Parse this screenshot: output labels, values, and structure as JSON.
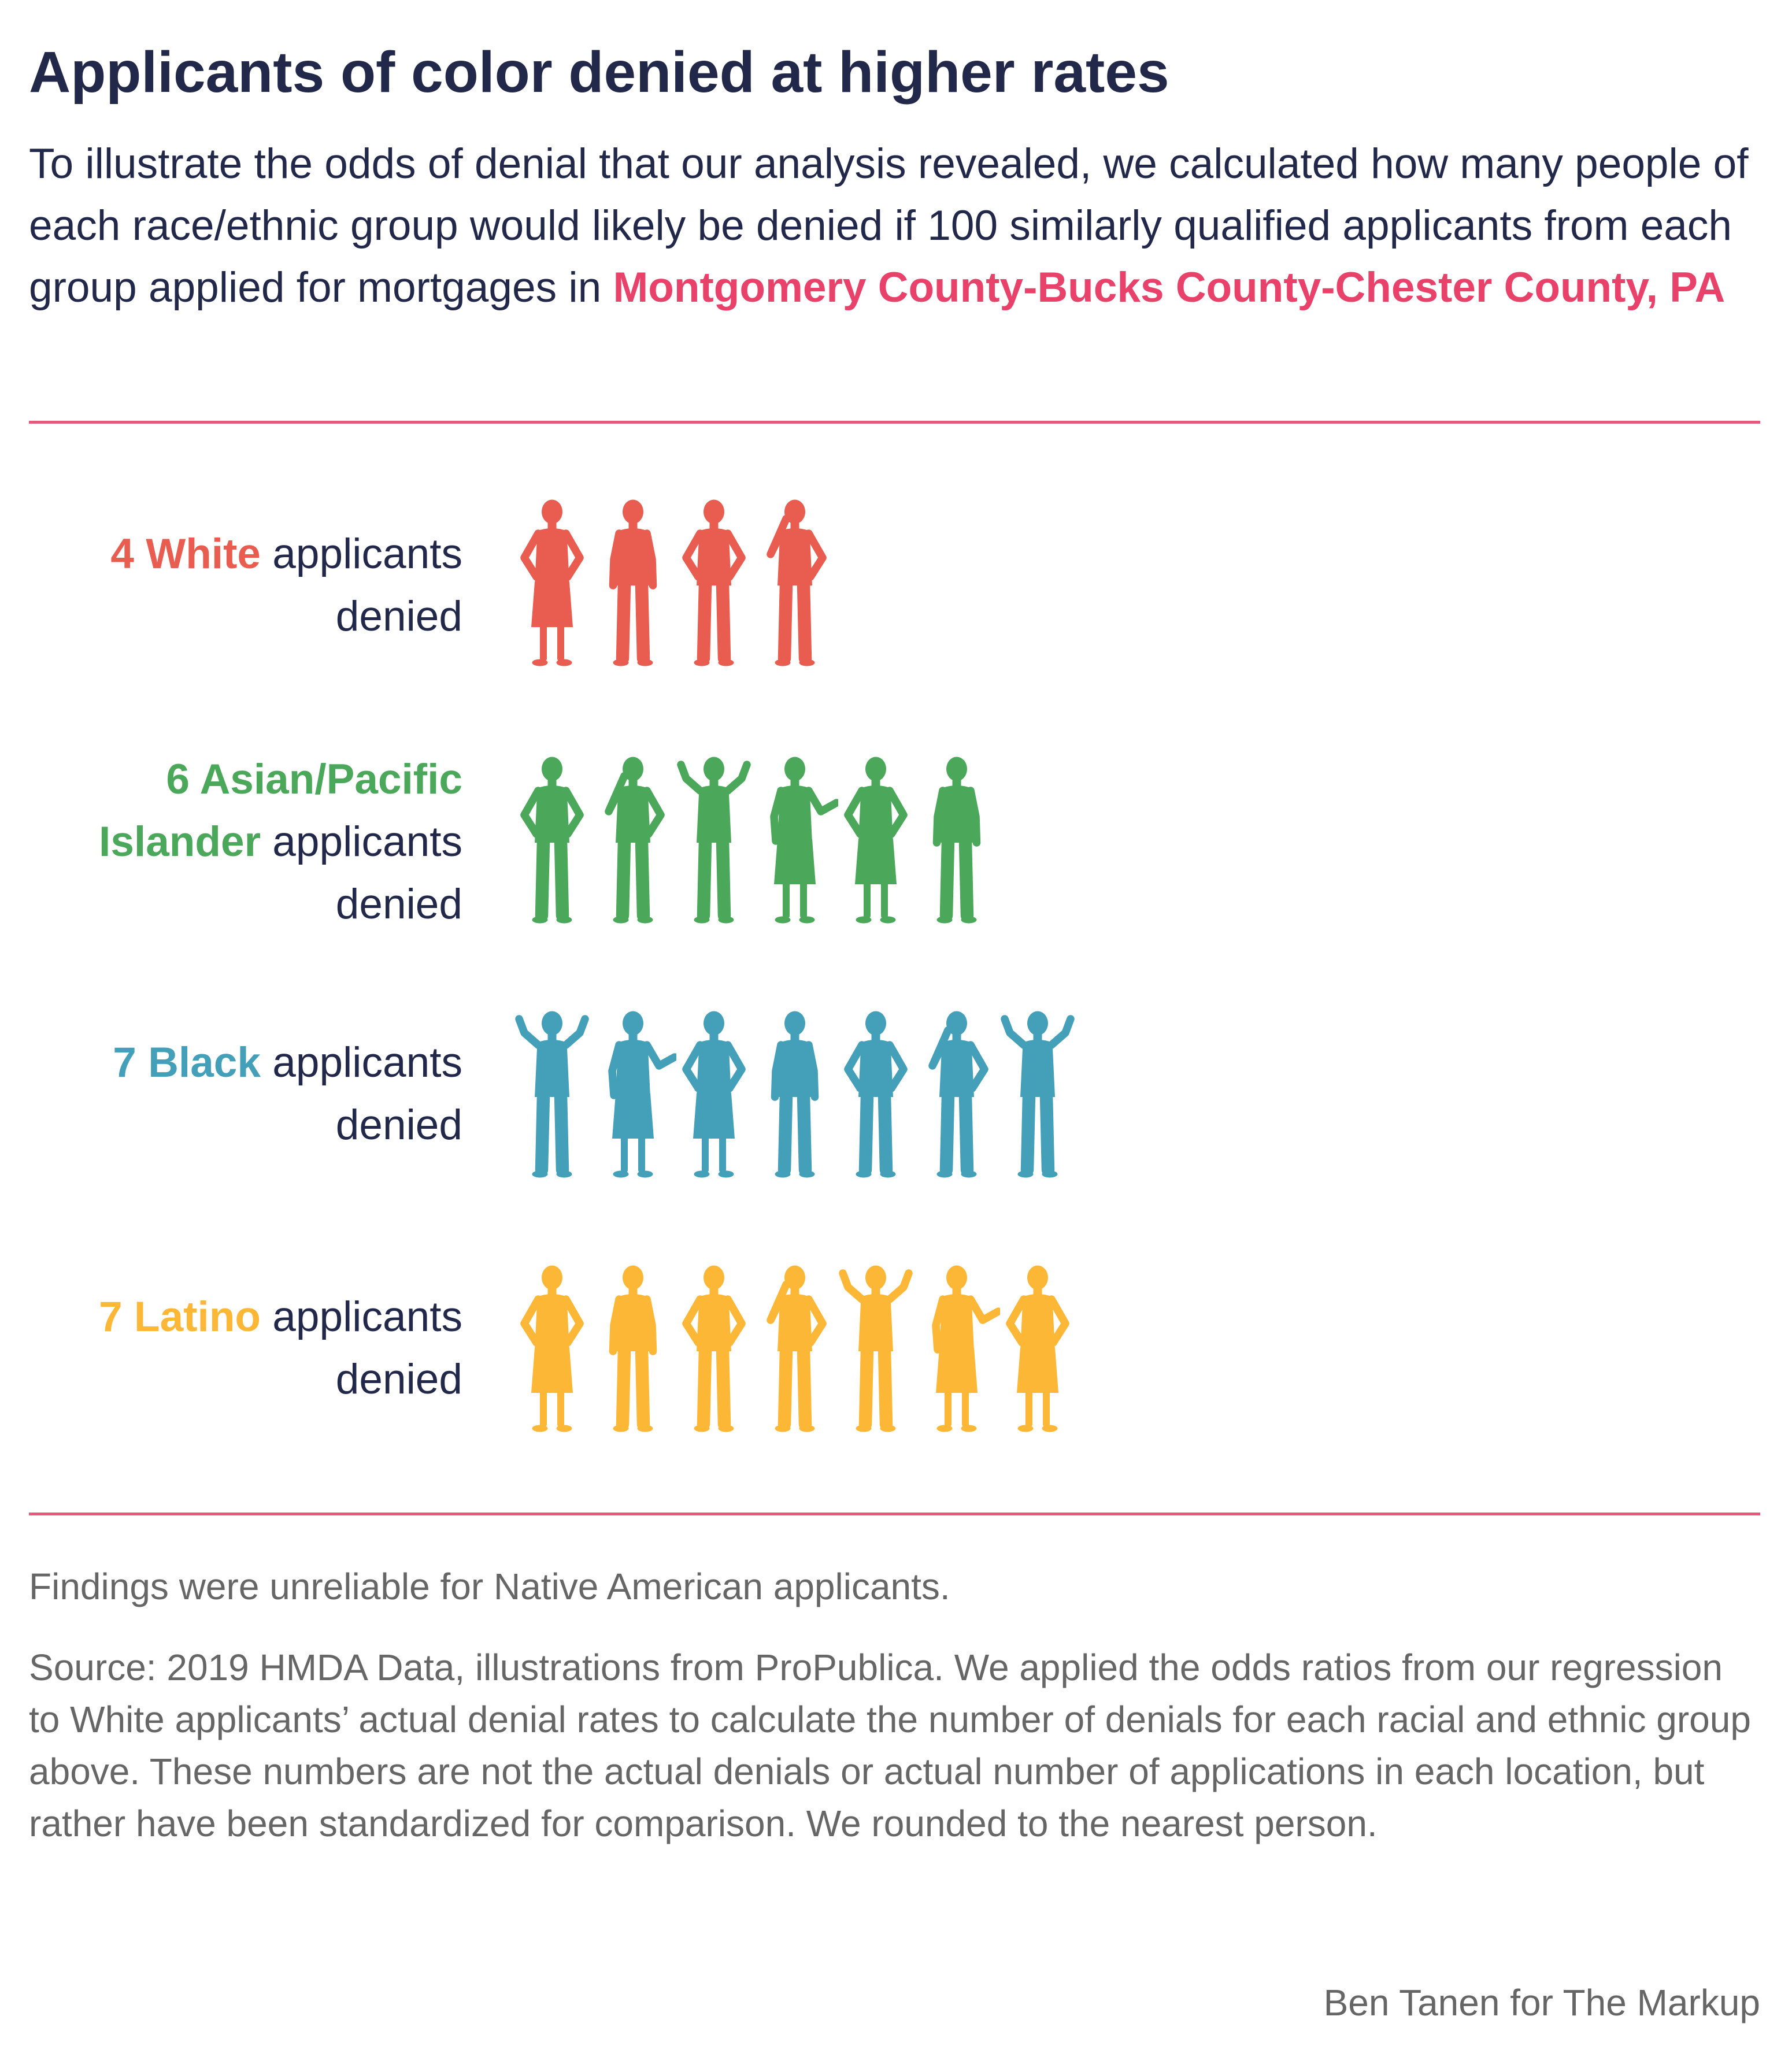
{
  "title": "Applicants of color denied at higher rates",
  "subtitle": {
    "text": "To illustrate the odds of denial that our analysis revealed, we calculated how many people of each race/ethnic group would likely be denied if 100 similarly qualified applicants from each group applied for mortgages in ",
    "place": "Montgomery County-Bucks County-Chester County, PA"
  },
  "colors": {
    "accent": "#e8426a",
    "rule": "#e45a7b",
    "text": "#22284a",
    "muted": "#666666"
  },
  "chart_data": {
    "type": "pictograph",
    "unit": "applicants denied per 100 similarly qualified applicants",
    "rows": [
      {
        "count": 4,
        "count_label": "4",
        "group": "White",
        "suffix": "applicants denied",
        "color": "#e85d50"
      },
      {
        "count": 6,
        "count_label": "6",
        "group": "Asian/Pacific Islander",
        "suffix": "applicants denied",
        "color": "#4ba85a"
      },
      {
        "count": 7,
        "count_label": "7",
        "group": "Black",
        "suffix": "applicants denied",
        "color": "#44a0b8"
      },
      {
        "count": 7,
        "count_label": "7",
        "group": "Latino",
        "suffix": "applicants denied",
        "color": "#fbb735"
      }
    ]
  },
  "footer": {
    "note": "Findings were unreliable for Native American applicants.",
    "source": "Source: 2019 HMDA Data, illustrations from ProPublica. We applied the odds ratios from our regression to White applicants’ actual denial rates to calculate the number of denials for each racial and ethnic group above. These numbers are not the actual denials or actual number of applications in each location, but rather have been standardized for comparison. We rounded to the nearest person.",
    "credit": "Ben Tanen for The Markup"
  }
}
